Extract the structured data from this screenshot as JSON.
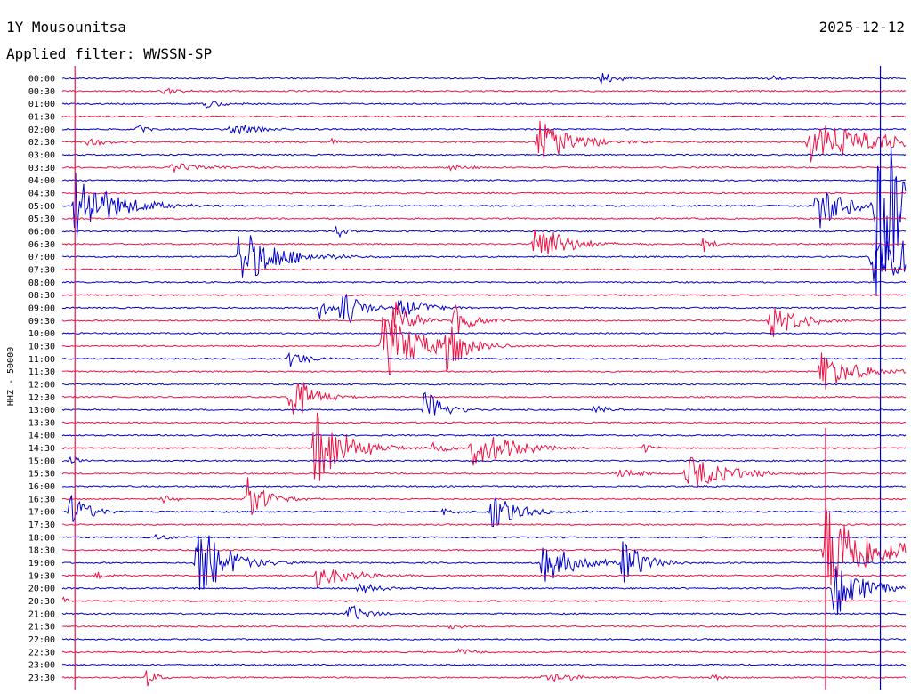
{
  "header": {
    "station": "1Y Mousounitsa",
    "date": "2025-12-12",
    "filter_label": "Applied filter: WWSSN-SP"
  },
  "chart_data": {
    "type": "helicorder",
    "ylabel": "HHZ - 50000",
    "tick_labels": [
      "00:00",
      "00:30",
      "01:00",
      "01:30",
      "02:00",
      "02:30",
      "03:00",
      "03:30",
      "04:00",
      "04:30",
      "05:00",
      "05:30",
      "06:00",
      "06:30",
      "07:00",
      "07:30",
      "08:00",
      "08:30",
      "09:00",
      "09:30",
      "10:00",
      "10:30",
      "11:00",
      "11:30",
      "12:00",
      "12:30",
      "13:00",
      "13:30",
      "14:00",
      "14:30",
      "15:00",
      "15:30",
      "16:00",
      "16:30",
      "17:00",
      "17:30",
      "18:00",
      "18:30",
      "19:00",
      "19:30",
      "20:00",
      "20:30",
      "21:00",
      "21:30",
      "22:00",
      "22:30",
      "23:00",
      "23:30"
    ],
    "colors": {
      "even": "#0000cc",
      "odd": "#ee1144"
    },
    "x_range_minutes": [
      0,
      30
    ],
    "events": [
      {
        "row": 0,
        "t": 0.64,
        "amp": 0.5,
        "dur": 0.02
      },
      {
        "row": 0,
        "t": 0.84,
        "amp": 0.3,
        "dur": 0.01
      },
      {
        "row": 1,
        "t": 0.12,
        "amp": 0.3,
        "dur": 0.02
      },
      {
        "row": 2,
        "t": 0.17,
        "amp": 0.4,
        "dur": 0.02
      },
      {
        "row": 4,
        "t": 0.09,
        "amp": 0.4,
        "dur": 0.01
      },
      {
        "row": 4,
        "t": 0.2,
        "amp": 0.5,
        "dur": 0.03
      },
      {
        "row": 5,
        "t": 0.03,
        "amp": 0.4,
        "dur": 0.02
      },
      {
        "row": 5,
        "t": 0.32,
        "amp": 0.3,
        "dur": 0.01
      },
      {
        "row": 5,
        "t": 0.565,
        "amp": 1.8,
        "dur": 0.04
      },
      {
        "row": 5,
        "t": 0.885,
        "amp": 1.8,
        "dur": 0.08
      },
      {
        "row": 7,
        "t": 0.13,
        "amp": 0.4,
        "dur": 0.04
      },
      {
        "row": 7,
        "t": 0.46,
        "amp": 0.3,
        "dur": 0.02
      },
      {
        "row": 10,
        "t": 0.015,
        "amp": 3.0,
        "dur": 0.04
      },
      {
        "row": 10,
        "t": 0.895,
        "amp": 2.0,
        "dur": 0.03
      },
      {
        "row": 10,
        "t": 0.965,
        "amp": 7.0,
        "dur": 0.05
      },
      {
        "row": 12,
        "t": 0.325,
        "amp": 0.6,
        "dur": 0.01
      },
      {
        "row": 13,
        "t": 0.56,
        "amp": 2.2,
        "dur": 0.03
      },
      {
        "row": 13,
        "t": 0.76,
        "amp": 0.8,
        "dur": 0.01
      },
      {
        "row": 14,
        "t": 0.21,
        "amp": 2.5,
        "dur": 0.04
      },
      {
        "row": 14,
        "t": 0.96,
        "amp": 2.5,
        "dur": 0.06
      },
      {
        "row": 18,
        "t": 0.305,
        "amp": 1.0,
        "dur": 0.01
      },
      {
        "row": 18,
        "t": 0.33,
        "amp": 2.0,
        "dur": 0.02
      },
      {
        "row": 18,
        "t": 0.4,
        "amp": 0.9,
        "dur": 0.03
      },
      {
        "row": 19,
        "t": 0.39,
        "amp": 2.0,
        "dur": 0.02
      },
      {
        "row": 19,
        "t": 0.465,
        "amp": 1.4,
        "dur": 0.02
      },
      {
        "row": 19,
        "t": 0.84,
        "amp": 1.6,
        "dur": 0.03
      },
      {
        "row": 21,
        "t": 0.38,
        "amp": 2.8,
        "dur": 0.04
      },
      {
        "row": 21,
        "t": 0.455,
        "amp": 2.5,
        "dur": 0.02
      },
      {
        "row": 22,
        "t": 0.27,
        "amp": 0.7,
        "dur": 0.02
      },
      {
        "row": 23,
        "t": 0.9,
        "amp": 1.6,
        "dur": 0.04
      },
      {
        "row": 25,
        "t": 0.27,
        "amp": 2.8,
        "dur": 0.02
      },
      {
        "row": 26,
        "t": 0.43,
        "amp": 1.8,
        "dur": 0.02
      },
      {
        "row": 26,
        "t": 0.63,
        "amp": 0.4,
        "dur": 0.02
      },
      {
        "row": 29,
        "t": 0.3,
        "amp": 3.5,
        "dur": 0.03
      },
      {
        "row": 29,
        "t": 0.36,
        "amp": 0.6,
        "dur": 0.01
      },
      {
        "row": 29,
        "t": 0.44,
        "amp": 0.5,
        "dur": 0.02
      },
      {
        "row": 29,
        "t": 0.485,
        "amp": 1.8,
        "dur": 0.04
      },
      {
        "row": 29,
        "t": 0.69,
        "amp": 0.4,
        "dur": 0.01
      },
      {
        "row": 30,
        "t": 0.01,
        "amp": 0.5,
        "dur": 0.01
      },
      {
        "row": 31,
        "t": 0.66,
        "amp": 0.4,
        "dur": 0.03
      },
      {
        "row": 31,
        "t": 0.74,
        "amp": 1.6,
        "dur": 0.04
      },
      {
        "row": 33,
        "t": 0.12,
        "amp": 0.3,
        "dur": 0.02
      },
      {
        "row": 33,
        "t": 0.22,
        "amp": 1.8,
        "dur": 0.02
      },
      {
        "row": 34,
        "t": 0.01,
        "amp": 1.5,
        "dur": 0.02
      },
      {
        "row": 34,
        "t": 0.45,
        "amp": 0.3,
        "dur": 0.02
      },
      {
        "row": 34,
        "t": 0.51,
        "amp": 1.4,
        "dur": 0.03
      },
      {
        "row": 36,
        "t": 0.11,
        "amp": 0.3,
        "dur": 0.02
      },
      {
        "row": 38,
        "t": 0.16,
        "amp": 3.5,
        "dur": 0.03
      },
      {
        "row": 38,
        "t": 0.57,
        "amp": 1.6,
        "dur": 0.04
      },
      {
        "row": 38,
        "t": 0.665,
        "amp": 2.5,
        "dur": 0.02
      },
      {
        "row": 37,
        "t": 0.905,
        "amp": 4.0,
        "dur": 0.05
      },
      {
        "row": 39,
        "t": 0.04,
        "amp": 0.3,
        "dur": 0.02
      },
      {
        "row": 39,
        "t": 0.3,
        "amp": 1.0,
        "dur": 0.04
      },
      {
        "row": 40,
        "t": 0.35,
        "amp": 0.4,
        "dur": 0.03
      },
      {
        "row": 40,
        "t": 0.915,
        "amp": 2.5,
        "dur": 0.03
      },
      {
        "row": 41,
        "t": 0.0,
        "amp": 0.4,
        "dur": 0.01
      },
      {
        "row": 42,
        "t": 0.34,
        "amp": 0.8,
        "dur": 0.02
      },
      {
        "row": 43,
        "t": 0.46,
        "amp": 0.3,
        "dur": 0.01
      },
      {
        "row": 45,
        "t": 0.47,
        "amp": 0.3,
        "dur": 0.02
      },
      {
        "row": 47,
        "t": 0.1,
        "amp": 0.9,
        "dur": 0.01
      },
      {
        "row": 47,
        "t": 0.57,
        "amp": 0.4,
        "dur": 0.04
      },
      {
        "row": 47,
        "t": 0.77,
        "amp": 0.4,
        "dur": 0.01
      }
    ],
    "full_lines": [
      {
        "color": "odd",
        "t": 0.015,
        "y_from": 0.0,
        "y_to": 1.0
      },
      {
        "color": "even",
        "t": 0.97,
        "y_from": 0.0,
        "y_to": 1.0
      },
      {
        "color": "odd",
        "t": 0.905,
        "y_from": 0.58,
        "y_to": 1.0
      }
    ]
  }
}
